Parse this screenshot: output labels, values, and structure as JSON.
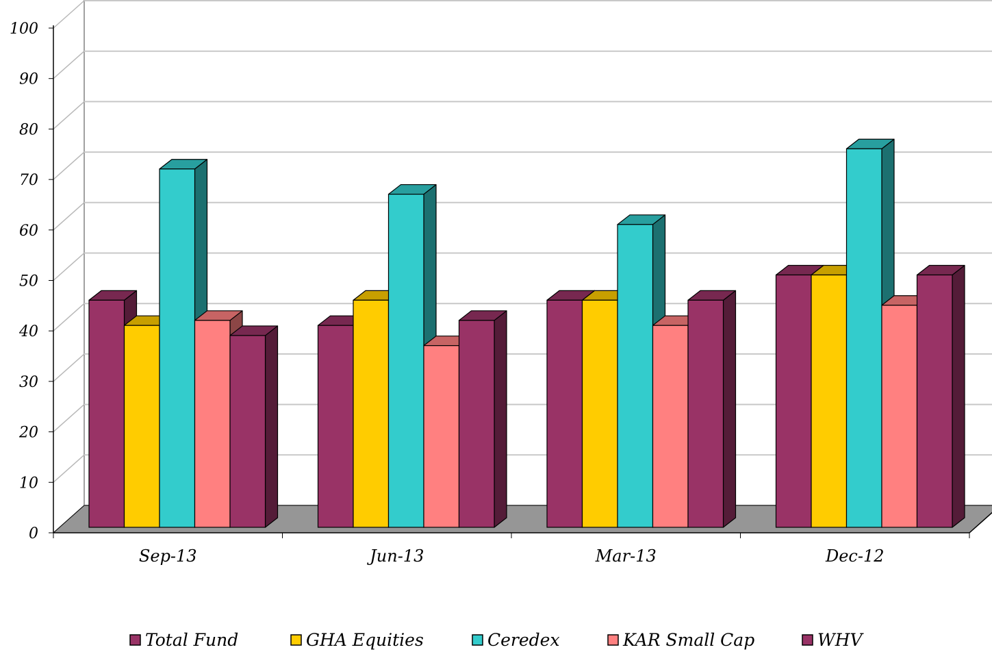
{
  "chart_data": {
    "type": "bar",
    "style": "3d-clustered-column",
    "categories": [
      "Sep-13",
      "Jun-13",
      "Mar-13",
      "Dec-12"
    ],
    "series": [
      {
        "name": "Total Fund",
        "color": "#993366",
        "values": [
          45,
          40,
          45,
          50
        ]
      },
      {
        "name": "GHA Equities",
        "color": "#FFCC00",
        "values": [
          40,
          45,
          45,
          50
        ]
      },
      {
        "name": "Ceredex",
        "color": "#33CCCC",
        "values": [
          71,
          66,
          60,
          75
        ]
      },
      {
        "name": "KAR Small Cap",
        "color": "#FF8080",
        "values": [
          41,
          36,
          40,
          44
        ]
      },
      {
        "name": "WHV",
        "color": "#993366",
        "values": [
          38,
          41,
          45,
          50
        ]
      }
    ],
    "yticks": [
      "0",
      "10",
      "20",
      "30",
      "40",
      "50",
      "60",
      "70",
      "80",
      "90",
      "100"
    ],
    "ylim": [
      0,
      100
    ],
    "grid": true,
    "legend_position": "bottom",
    "title": "",
    "xlabel": "",
    "ylabel": ""
  }
}
